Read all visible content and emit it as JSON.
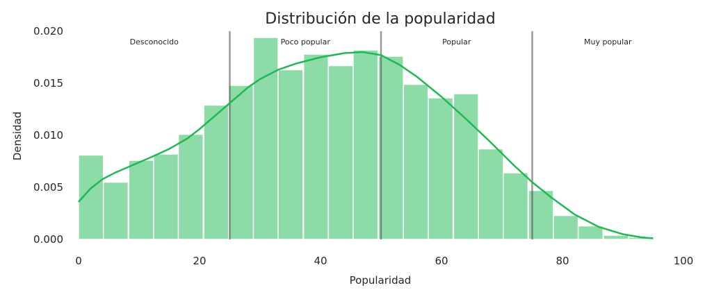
{
  "chart_data": {
    "type": "bar",
    "title": "Distribución de la popularidad",
    "xlabel": "Popularidad",
    "ylabel": "Densidad",
    "xlim": [
      0,
      100
    ],
    "ylim": [
      0,
      0.02
    ],
    "xticks": [
      "0",
      "20",
      "40",
      "60",
      "80",
      "100"
    ],
    "yticks": [
      "0.000",
      "0.005",
      "0.010",
      "0.015",
      "0.020"
    ],
    "grid": false,
    "bin_width": 4.1,
    "bins": [
      {
        "x0": 0.0,
        "density": 0.0081
      },
      {
        "x0": 4.1,
        "density": 0.0055
      },
      {
        "x0": 8.3,
        "density": 0.0076
      },
      {
        "x0": 12.4,
        "density": 0.0082
      },
      {
        "x0": 16.5,
        "density": 0.0101
      },
      {
        "x0": 20.7,
        "density": 0.0129
      },
      {
        "x0": 24.8,
        "density": 0.0148
      },
      {
        "x0": 28.9,
        "density": 0.0194
      },
      {
        "x0": 33.0,
        "density": 0.0163
      },
      {
        "x0": 37.2,
        "density": 0.0178
      },
      {
        "x0": 41.3,
        "density": 0.0167
      },
      {
        "x0": 45.4,
        "density": 0.0182
      },
      {
        "x0": 49.6,
        "density": 0.0176
      },
      {
        "x0": 53.7,
        "density": 0.0149
      },
      {
        "x0": 57.8,
        "density": 0.0136
      },
      {
        "x0": 62.0,
        "density": 0.014
      },
      {
        "x0": 66.1,
        "density": 0.0087
      },
      {
        "x0": 70.2,
        "density": 0.0064
      },
      {
        "x0": 74.4,
        "density": 0.0047
      },
      {
        "x0": 78.5,
        "density": 0.0023
      },
      {
        "x0": 82.6,
        "density": 0.0013
      },
      {
        "x0": 86.8,
        "density": 0.0004
      },
      {
        "x0": 90.9,
        "density": 0.0002
      }
    ],
    "kde": {
      "x": [
        0,
        2,
        4,
        6,
        8,
        10,
        12,
        15,
        18,
        20,
        22,
        25,
        28,
        30,
        33,
        36,
        40,
        44,
        47,
        50,
        53,
        56,
        60,
        64,
        68,
        72,
        75,
        78,
        82,
        86,
        90,
        93,
        95
      ],
      "y": [
        0.0036,
        0.0049,
        0.0058,
        0.0064,
        0.0069,
        0.0074,
        0.0079,
        0.0087,
        0.0097,
        0.0106,
        0.0116,
        0.0131,
        0.0146,
        0.0154,
        0.0163,
        0.0169,
        0.0175,
        0.0179,
        0.018,
        0.0177,
        0.0168,
        0.0156,
        0.0137,
        0.0116,
        0.0094,
        0.0071,
        0.0055,
        0.0041,
        0.0024,
        0.0012,
        0.0005,
        0.0002,
        0.0001
      ]
    },
    "thresholds": [
      25,
      50,
      75
    ],
    "regions": [
      {
        "label": "Desconocido",
        "center": 12.5
      },
      {
        "label": "Poco popular",
        "center": 37.5
      },
      {
        "label": "Popular",
        "center": 62.5
      },
      {
        "label": "Muy popular",
        "center": 87.5
      }
    ],
    "colors": {
      "bar": "#8ddca8",
      "kde": "#1db954",
      "threshold": "#999999",
      "text": "#262626"
    }
  }
}
